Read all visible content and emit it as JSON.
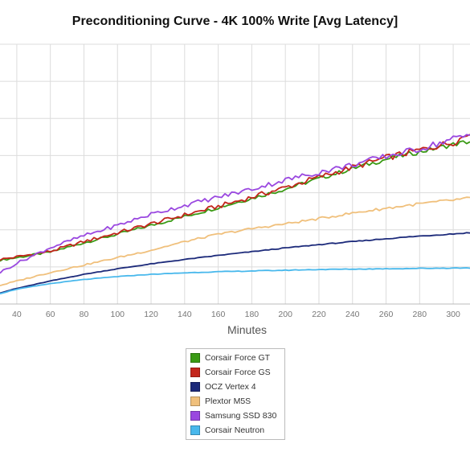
{
  "chart_data": {
    "type": "line",
    "title": "Preconditioning Curve - 4K 100% Write [Avg Latency]",
    "xlabel": "Minutes",
    "ylabel": "",
    "xlim": [
      30,
      310
    ],
    "ylim": [
      0,
      7
    ],
    "x_ticks": [
      40,
      60,
      80,
      100,
      120,
      140,
      160,
      180,
      200,
      220,
      240,
      260,
      280,
      300
    ],
    "grid": true,
    "legend_position": "bottom-center",
    "series": [
      {
        "name": "Corsair Force GT",
        "color": "#3a9a14",
        "x": [
          30,
          40,
          60,
          80,
          100,
          120,
          140,
          160,
          180,
          200,
          220,
          240,
          260,
          280,
          300,
          310
        ],
        "y": [
          1.18,
          1.25,
          1.4,
          1.65,
          1.88,
          2.12,
          2.36,
          2.6,
          2.85,
          3.1,
          3.38,
          3.65,
          3.9,
          4.1,
          4.3,
          4.38
        ]
      },
      {
        "name": "Corsair Force GS",
        "color": "#c3261c",
        "x": [
          30,
          40,
          60,
          80,
          100,
          120,
          140,
          160,
          180,
          200,
          220,
          240,
          260,
          280,
          300,
          310
        ],
        "y": [
          1.2,
          1.27,
          1.42,
          1.68,
          1.92,
          2.16,
          2.4,
          2.63,
          2.88,
          3.14,
          3.42,
          3.68,
          3.94,
          4.15,
          4.36,
          4.6
        ]
      },
      {
        "name": "OCZ Vertex 4",
        "color": "#1c2a7a",
        "x": [
          30,
          40,
          60,
          80,
          100,
          120,
          140,
          160,
          180,
          200,
          220,
          240,
          260,
          280,
          300,
          310
        ],
        "y": [
          0.3,
          0.42,
          0.62,
          0.8,
          0.95,
          1.08,
          1.2,
          1.31,
          1.41,
          1.51,
          1.6,
          1.68,
          1.76,
          1.83,
          1.89,
          1.92
        ]
      },
      {
        "name": "Plextor M5S",
        "color": "#f0c07c",
        "x": [
          30,
          40,
          60,
          80,
          100,
          120,
          140,
          160,
          180,
          200,
          220,
          240,
          260,
          280,
          300,
          310
        ],
        "y": [
          0.5,
          0.62,
          0.85,
          1.05,
          1.25,
          1.45,
          1.68,
          1.88,
          2.03,
          2.16,
          2.3,
          2.45,
          2.58,
          2.7,
          2.8,
          2.85
        ]
      },
      {
        "name": "Samsung SSD 830",
        "color": "#9a48e0",
        "x": [
          30,
          40,
          60,
          80,
          100,
          120,
          140,
          160,
          180,
          200,
          220,
          240,
          260,
          280,
          300,
          310
        ],
        "y": [
          0.85,
          1.1,
          1.52,
          1.84,
          2.12,
          2.42,
          2.66,
          2.88,
          3.1,
          3.34,
          3.55,
          3.75,
          3.98,
          4.18,
          4.45,
          4.55
        ]
      },
      {
        "name": "Corsair Neutron",
        "color": "#48b8ec",
        "x": [
          30,
          40,
          60,
          80,
          100,
          120,
          140,
          160,
          180,
          200,
          220,
          240,
          260,
          280,
          300,
          310
        ],
        "y": [
          0.28,
          0.4,
          0.55,
          0.66,
          0.74,
          0.8,
          0.84,
          0.87,
          0.89,
          0.91,
          0.93,
          0.94,
          0.95,
          0.96,
          0.97,
          0.97
        ]
      }
    ]
  }
}
